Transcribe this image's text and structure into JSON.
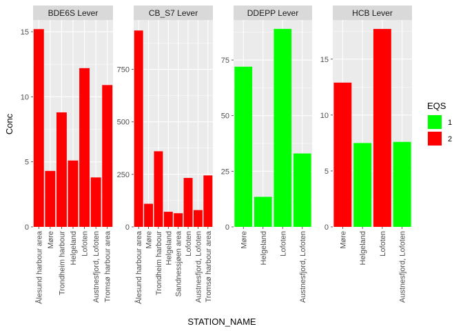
{
  "chart_data": {
    "type": "bar",
    "xlabel": "STATION_NAME",
    "ylabel": "Conc",
    "grid": true,
    "legend": {
      "title": "EQS",
      "placement": "right",
      "entries": [
        {
          "label": "1",
          "color": "#00FF00"
        },
        {
          "label": "2",
          "color": "#FF0000"
        }
      ]
    },
    "colors": {
      "1": "#00FF00",
      "2": "#FF0000"
    },
    "facets": [
      {
        "title": "BDE6S Lever",
        "ylim": [
          0,
          15.9
        ],
        "yticks": [
          0,
          5,
          10,
          15
        ],
        "categories": [
          "Ålesund harbour area",
          "Møre",
          "Trondheim harbour",
          "Helgeland",
          "Lofoten",
          "Austnesfjord, Lofoten",
          "Tromsø harbour area"
        ],
        "values": [
          15.2,
          4.3,
          8.8,
          5.1,
          12.2,
          3.8,
          10.9
        ],
        "eqs": [
          "2",
          "2",
          "2",
          "2",
          "2",
          "2",
          "2"
        ]
      },
      {
        "title": "CB_S7 Lever",
        "ylim": [
          0,
          985
        ],
        "yticks": [
          0,
          250,
          500,
          750
        ],
        "categories": [
          "Ålesund harbour area",
          "Møre",
          "Trondheim harbour",
          "Helgeland",
          "Sandnessjøen area",
          "Lofoten",
          "Austnesfjord, Lofoten",
          "Tromsø harbour area"
        ],
        "values": [
          935,
          110,
          360,
          72,
          65,
          233,
          80,
          245
        ],
        "eqs": [
          "2",
          "2",
          "2",
          "2",
          "2",
          "2",
          "2",
          "2"
        ]
      },
      {
        "title": "DDEPP Lever",
        "ylim": [
          0,
          93
        ],
        "yticks": [
          0,
          25,
          50,
          75
        ],
        "categories": [
          "Møre",
          "Helgeland",
          "Lofoten",
          "Austnesfjord, Lofoten"
        ],
        "values": [
          72,
          13.5,
          89,
          33
        ],
        "eqs": [
          "1",
          "1",
          "1",
          "1"
        ]
      },
      {
        "title": "HCB Lever",
        "ylim": [
          0,
          18.5
        ],
        "yticks": [
          0,
          5,
          10,
          15
        ],
        "categories": [
          "Møre",
          "Helgeland",
          "Lofoten",
          "Austnesfjord, Lofoten"
        ],
        "values": [
          12.9,
          7.5,
          17.7,
          7.6
        ],
        "eqs": [
          "2",
          "1",
          "2",
          "1"
        ]
      }
    ]
  }
}
